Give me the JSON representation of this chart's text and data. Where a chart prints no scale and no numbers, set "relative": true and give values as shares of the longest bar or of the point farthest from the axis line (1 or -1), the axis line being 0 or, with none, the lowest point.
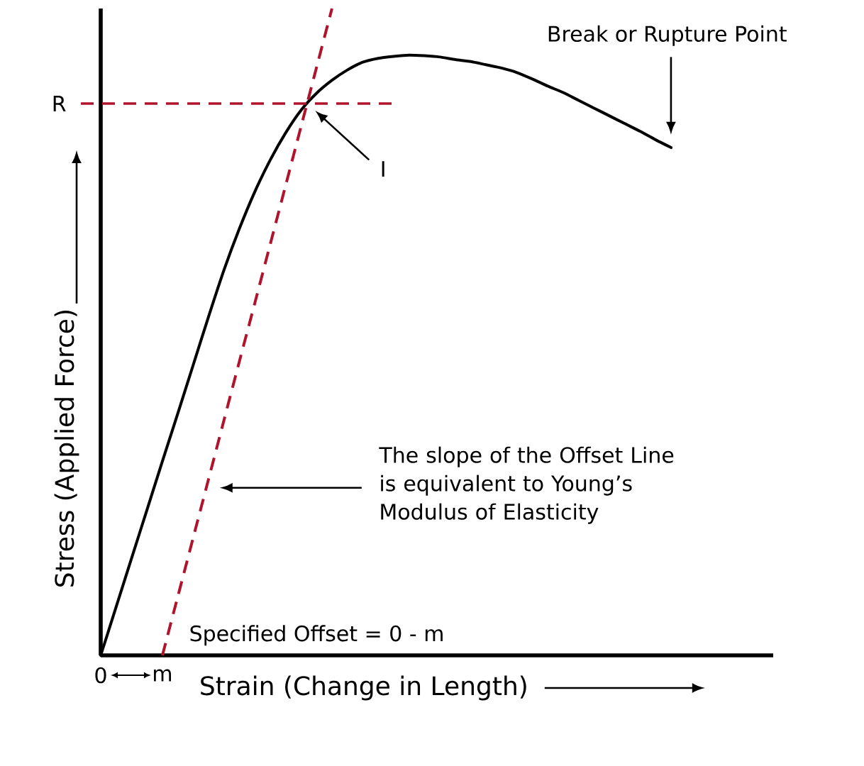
{
  "chart_data": {
    "type": "line",
    "relative": true,
    "xlabel": "Strain (Change in Length)",
    "ylabel": "Stress (Applied Force)",
    "categories": [
      "0",
      null,
      null,
      null,
      "m",
      null,
      null,
      null,
      null,
      null,
      null,
      null,
      null,
      null,
      null,
      null,
      null,
      null,
      null,
      null,
      null,
      null,
      null,
      null,
      null,
      null,
      null,
      null,
      null,
      null,
      null,
      null,
      null,
      null,
      null,
      null,
      null,
      null
    ],
    "series": [
      {
        "color": "#000000",
        "line_style": "solid",
        "values": [
          0,
          0.075,
          0.15,
          0.225,
          0.3,
          0.374,
          0.449,
          0.524,
          0.596,
          0.66,
          0.717,
          0.766,
          0.808,
          0.843,
          0.869,
          0.889,
          0.905,
          0.917,
          0.923,
          0.926,
          0.928,
          0.927,
          0.925,
          0.921,
          0.918,
          0.913,
          0.908,
          0.901,
          0.891,
          0.88,
          0.87,
          0.858,
          0.846,
          0.834,
          0.822,
          0.81,
          0.797,
          0.785
        ]
      },
      {
        "color": "#b0142c",
        "line_style": "dashed",
        "values": [
          null,
          null,
          null,
          null,
          0,
          0.091,
          0.182,
          0.273,
          0.364,
          0.455,
          0.545,
          0.636,
          0.727,
          0.818,
          0.909,
          1,
          null,
          null,
          null,
          null,
          null,
          null,
          null,
          null,
          null,
          null,
          null,
          null,
          null,
          null,
          null,
          null,
          null,
          null,
          null,
          null,
          null,
          null
        ]
      }
    ],
    "ref_lines": [
      {
        "axis": "y",
        "value": 0.853,
        "label": "R",
        "color": "#b0142c",
        "line_style": "dashed"
      }
    ],
    "annotations": [
      "Break or Rupture Point",
      "I",
      "The slope of the Offset Line is equivalent to Young’s Modulus of Elasticity",
      "Specified Offset = 0 - m"
    ]
  }
}
